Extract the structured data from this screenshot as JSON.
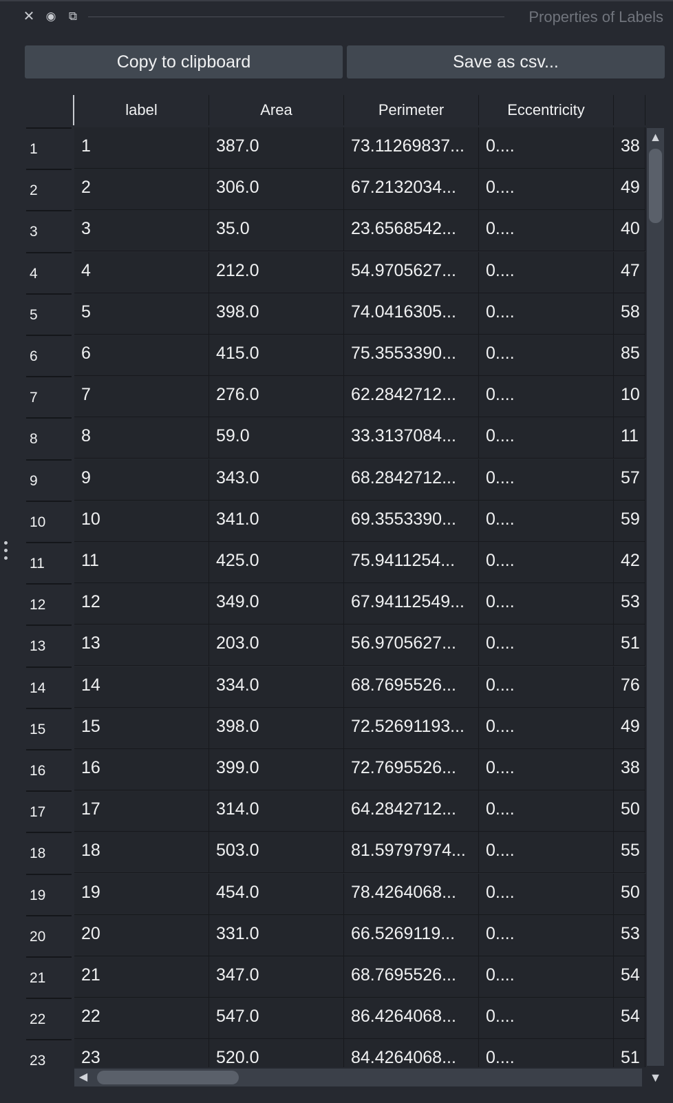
{
  "panel": {
    "title": "Properties of Labels",
    "icons": [
      "close-icon",
      "eye-icon",
      "float-icon"
    ],
    "close_glyph": "✕",
    "eye_glyph": "◉",
    "float_glyph": "⧉"
  },
  "toolbar": {
    "copy_label": "Copy to clipboard",
    "save_label": "Save as csv..."
  },
  "table": {
    "columns": [
      "label",
      "Area",
      "Perimeter",
      "Eccentricity",
      ""
    ],
    "rows": [
      {
        "index": "1",
        "label": "1",
        "area": "387.0",
        "perimeter": "73.11269837...",
        "eccentricity": "0....",
        "next": "38"
      },
      {
        "index": "2",
        "label": "2",
        "area": "306.0",
        "perimeter": "67.2132034...",
        "eccentricity": "0....",
        "next": "49"
      },
      {
        "index": "3",
        "label": "3",
        "area": "35.0",
        "perimeter": "23.6568542...",
        "eccentricity": "0....",
        "next": "40"
      },
      {
        "index": "4",
        "label": "4",
        "area": "212.0",
        "perimeter": "54.9705627...",
        "eccentricity": "0....",
        "next": "47"
      },
      {
        "index": "5",
        "label": "5",
        "area": "398.0",
        "perimeter": "74.0416305...",
        "eccentricity": "0....",
        "next": "58"
      },
      {
        "index": "6",
        "label": "6",
        "area": "415.0",
        "perimeter": "75.3553390...",
        "eccentricity": "0....",
        "next": "85"
      },
      {
        "index": "7",
        "label": "7",
        "area": "276.0",
        "perimeter": "62.2842712...",
        "eccentricity": "0....",
        "next": "10"
      },
      {
        "index": "8",
        "label": "8",
        "area": "59.0",
        "perimeter": "33.3137084...",
        "eccentricity": "0....",
        "next": "11"
      },
      {
        "index": "9",
        "label": "9",
        "area": "343.0",
        "perimeter": "68.2842712...",
        "eccentricity": "0....",
        "next": "57"
      },
      {
        "index": "10",
        "label": "10",
        "area": "341.0",
        "perimeter": "69.3553390...",
        "eccentricity": "0....",
        "next": "59"
      },
      {
        "index": "11",
        "label": "11",
        "area": "425.0",
        "perimeter": "75.9411254...",
        "eccentricity": "0....",
        "next": "42"
      },
      {
        "index": "12",
        "label": "12",
        "area": "349.0",
        "perimeter": "67.94112549...",
        "eccentricity": "0....",
        "next": "53"
      },
      {
        "index": "13",
        "label": "13",
        "area": "203.0",
        "perimeter": "56.9705627...",
        "eccentricity": "0....",
        "next": "51"
      },
      {
        "index": "14",
        "label": "14",
        "area": "334.0",
        "perimeter": "68.7695526...",
        "eccentricity": "0....",
        "next": "76"
      },
      {
        "index": "15",
        "label": "15",
        "area": "398.0",
        "perimeter": "72.52691193...",
        "eccentricity": "0....",
        "next": "49"
      },
      {
        "index": "16",
        "label": "16",
        "area": "399.0",
        "perimeter": "72.7695526...",
        "eccentricity": "0....",
        "next": "38"
      },
      {
        "index": "17",
        "label": "17",
        "area": "314.0",
        "perimeter": "64.2842712...",
        "eccentricity": "0....",
        "next": "50"
      },
      {
        "index": "18",
        "label": "18",
        "area": "503.0",
        "perimeter": "81.59797974...",
        "eccentricity": "0....",
        "next": "55"
      },
      {
        "index": "19",
        "label": "19",
        "area": "454.0",
        "perimeter": "78.4264068...",
        "eccentricity": "0....",
        "next": "50"
      },
      {
        "index": "20",
        "label": "20",
        "area": "331.0",
        "perimeter": "66.5269119...",
        "eccentricity": "0....",
        "next": "53"
      },
      {
        "index": "21",
        "label": "21",
        "area": "347.0",
        "perimeter": "68.7695526...",
        "eccentricity": "0....",
        "next": "54"
      },
      {
        "index": "22",
        "label": "22",
        "area": "547.0",
        "perimeter": "86.4264068...",
        "eccentricity": "0....",
        "next": "54"
      },
      {
        "index": "23",
        "label": "23",
        "area": "520.0",
        "perimeter": "84.4264068...",
        "eccentricity": "0....",
        "next": "51"
      }
    ]
  },
  "scrollbars": {
    "up_glyph": "▲",
    "down_glyph": "▼",
    "left_glyph": "◀"
  },
  "colors": {
    "background": "#262930",
    "cell": "#23262c",
    "button": "#414851",
    "scroll_track": "#3b4049",
    "scroll_thumb": "#5a606a",
    "title_muted": "#70747c"
  }
}
